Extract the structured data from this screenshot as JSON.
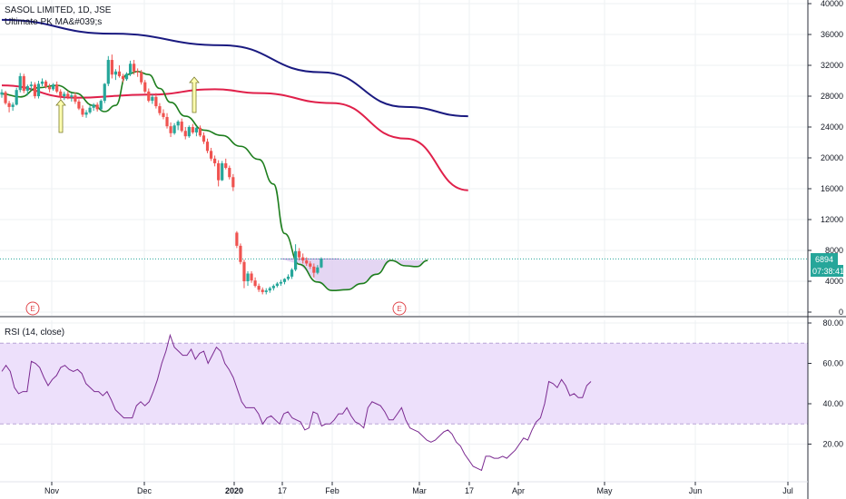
{
  "header": {
    "symbol_line": "SASOL LIMITED, 1D, JSE",
    "indicator_line": "Ultimate PK MA&#039;s"
  },
  "rsi_pane": {
    "label": "RSI (14, close)"
  },
  "price_badge": {
    "price": "6894",
    "countdown": "07:38:41"
  },
  "events": [
    "E",
    "E"
  ],
  "colors": {
    "up": "#26a69a",
    "down": "#ef5350",
    "ma_long": "#1a1a80",
    "ma_mid": "#e0204a",
    "ma_short": "#1e7e1e",
    "rsi_line": "#7b2a91",
    "rsi_band": "#ede0fb",
    "cup_fill": "#d9c4ee",
    "price_line": "#26a69a",
    "arrow_fill": "#ffffb0"
  },
  "chart_data": [
    {
      "type": "candlestick",
      "title": "SASOL LIMITED, 1D, JSE",
      "y_ticks": [
        0,
        4000,
        8000,
        12000,
        16000,
        20000,
        24000,
        28000,
        32000,
        36000,
        40000
      ],
      "ylim": [
        0,
        40000
      ],
      "x_ticks": [
        "Nov",
        "Dec",
        "2020",
        "17",
        "Feb",
        "Mar",
        "17",
        "Apr",
        "May",
        "Jun",
        "Jul"
      ],
      "last_price": 6894,
      "series": [
        {
          "name": "Ultimate PK MA&#039;s",
          "kind": "moving_averages"
        }
      ],
      "ohlc": [
        [
          28200,
          28900,
          27800,
          28500
        ],
        [
          28500,
          28700,
          26900,
          27100
        ],
        [
          27100,
          27400,
          25900,
          26600
        ],
        [
          26600,
          27200,
          26100,
          26900
        ],
        [
          26900,
          29100,
          26800,
          28800
        ],
        [
          28800,
          31000,
          28500,
          30600
        ],
        [
          30600,
          30900,
          28400,
          28700
        ],
        [
          28700,
          29500,
          28100,
          29300
        ],
        [
          29300,
          29900,
          28800,
          29500
        ],
        [
          29500,
          29800,
          27700,
          28000
        ],
        [
          28000,
          30000,
          27700,
          29600
        ],
        [
          29600,
          30300,
          29300,
          29900
        ],
        [
          29900,
          30100,
          29000,
          29200
        ],
        [
          29200,
          29600,
          28500,
          28900
        ],
        [
          28900,
          29700,
          28700,
          29500
        ],
        [
          29500,
          29900,
          28400,
          28600
        ],
        [
          28600,
          28900,
          27600,
          28000
        ],
        [
          28000,
          28600,
          27500,
          28300
        ],
        [
          28300,
          28700,
          27600,
          27900
        ],
        [
          27900,
          28400,
          27300,
          28100
        ],
        [
          28100,
          28500,
          27000,
          27300
        ],
        [
          27300,
          27600,
          26200,
          26400
        ],
        [
          26400,
          26800,
          25300,
          25600
        ],
        [
          25600,
          26200,
          25200,
          25900
        ],
        [
          25900,
          26800,
          25700,
          26500
        ],
        [
          26500,
          27100,
          26100,
          26900
        ],
        [
          26900,
          27200,
          26000,
          26300
        ],
        [
          26300,
          27600,
          26100,
          27400
        ],
        [
          27400,
          29700,
          27100,
          29600
        ],
        [
          29600,
          33200,
          29300,
          32700
        ],
        [
          32700,
          33400,
          30300,
          30800
        ],
        [
          30800,
          31500,
          30100,
          31200
        ],
        [
          31200,
          32000,
          30400,
          30600
        ],
        [
          30600,
          30900,
          29800,
          30200
        ],
        [
          30200,
          31100,
          30000,
          30900
        ],
        [
          30900,
          32600,
          30600,
          32200
        ],
        [
          32200,
          32700,
          30800,
          31200
        ],
        [
          31200,
          31600,
          30500,
          31100
        ],
        [
          31100,
          31400,
          29500,
          29800
        ],
        [
          29800,
          30100,
          28400,
          28600
        ],
        [
          28600,
          29000,
          27200,
          27400
        ],
        [
          27400,
          28200,
          27000,
          27900
        ],
        [
          27900,
          28400,
          26400,
          26700
        ],
        [
          26700,
          27100,
          25500,
          25800
        ],
        [
          25800,
          26300,
          25000,
          25300
        ],
        [
          25300,
          25800,
          23800,
          24100
        ],
        [
          24100,
          24600,
          22700,
          23200
        ],
        [
          23200,
          24500,
          23000,
          24200
        ],
        [
          24200,
          24900,
          23600,
          24700
        ],
        [
          24700,
          25100,
          23300,
          23500
        ],
        [
          23500,
          24000,
          22400,
          22800
        ],
        [
          22800,
          24200,
          22600,
          24000
        ],
        [
          24000,
          24400,
          23100,
          23300
        ],
        [
          23300,
          24100,
          22800,
          23900
        ],
        [
          23900,
          24200,
          22700,
          22900
        ],
        [
          22900,
          23300,
          21800,
          22100
        ],
        [
          22100,
          22500,
          20600,
          20900
        ],
        [
          20900,
          21300,
          19600,
          19900
        ],
        [
          19900,
          20300,
          18900,
          19300
        ],
        [
          19300,
          19700,
          16300,
          17100
        ],
        [
          17100,
          19600,
          17000,
          19300
        ],
        [
          19300,
          19900,
          18500,
          18700
        ],
        [
          18700,
          19000,
          17200,
          17500
        ],
        [
          17500,
          17900,
          15700,
          16200
        ],
        [
          10300,
          10500,
          8300,
          8600
        ],
        [
          8600,
          8900,
          6200,
          6500
        ],
        [
          6500,
          6800,
          3100,
          4000
        ],
        [
          4000,
          5300,
          3400,
          5000
        ],
        [
          5000,
          5300,
          3800,
          4100
        ],
        [
          4100,
          4500,
          3200,
          3400
        ],
        [
          3400,
          3700,
          2600,
          2900
        ],
        [
          2900,
          3200,
          2300,
          2600
        ],
        [
          2600,
          3100,
          2300,
          2800
        ],
        [
          2800,
          3300,
          2500,
          3100
        ],
        [
          3100,
          3600,
          2800,
          3400
        ],
        [
          3400,
          3900,
          3200,
          3700
        ],
        [
          3700,
          4200,
          3400,
          3900
        ],
        [
          3900,
          4400,
          3600,
          4300
        ],
        [
          4300,
          4900,
          4100,
          4600
        ],
        [
          4600,
          5700,
          4300,
          5500
        ],
        [
          5500,
          8800,
          5300,
          7900
        ],
        [
          7900,
          8300,
          6700,
          7100
        ],
        [
          7100,
          7600,
          6300,
          6700
        ],
        [
          6700,
          7100,
          6000,
          6300
        ],
        [
          6300,
          6600,
          5600,
          5900
        ],
        [
          5900,
          6300,
          4500,
          5100
        ],
        [
          5100,
          6100,
          4900,
          5800
        ],
        [
          5800,
          7100,
          5700,
          6900
        ]
      ],
      "ma_long": [
        [
          0,
          37900
        ],
        [
          30,
          36100
        ],
        [
          60,
          34600
        ],
        [
          87,
          31100
        ],
        [
          110,
          26600
        ],
        [
          127,
          25400
        ]
      ],
      "ma_mid": [
        [
          0,
          29400
        ],
        [
          20,
          27800
        ],
        [
          40,
          28200
        ],
        [
          58,
          28900
        ],
        [
          70,
          28400
        ],
        [
          90,
          27100
        ],
        [
          110,
          22500
        ],
        [
          127,
          15800
        ]
      ],
      "ma_short": [
        [
          0,
          28300
        ],
        [
          5,
          27900
        ],
        [
          10,
          29100
        ],
        [
          15,
          29400
        ],
        [
          20,
          28400
        ],
        [
          25,
          26800
        ],
        [
          28,
          26000
        ],
        [
          31,
          26800
        ],
        [
          34,
          30800
        ],
        [
          37,
          31200
        ],
        [
          40,
          30800
        ],
        [
          43,
          29000
        ],
        [
          46,
          27200
        ],
        [
          50,
          25400
        ],
        [
          55,
          23600
        ],
        [
          60,
          22900
        ],
        [
          65,
          21500
        ],
        [
          70,
          19800
        ],
        [
          74,
          16600
        ],
        [
          77,
          10200
        ],
        [
          81,
          6200
        ],
        [
          86,
          3900
        ],
        [
          90,
          2800
        ],
        [
          94,
          2900
        ],
        [
          98,
          3700
        ],
        [
          102,
          4900
        ],
        [
          106,
          6700
        ],
        [
          110,
          6000
        ],
        [
          113,
          5900
        ],
        [
          116,
          6700
        ]
      ]
    },
    {
      "type": "line",
      "title": "RSI (14, close)",
      "y_ticks": [
        20,
        40,
        60,
        80
      ],
      "ylim": [
        0,
        80
      ],
      "band": [
        30,
        70
      ],
      "values": [
        56,
        59,
        56,
        48,
        45,
        46,
        46,
        61,
        60,
        58,
        53,
        49,
        52,
        54,
        58,
        59,
        57,
        56,
        57,
        55,
        50,
        48,
        46,
        46,
        44,
        46,
        42,
        37,
        35,
        33,
        33,
        33,
        39,
        41,
        39,
        41,
        46,
        52,
        60,
        66,
        74,
        68,
        66,
        64,
        64,
        67,
        62,
        65,
        66,
        60,
        64,
        68,
        66,
        60,
        57,
        53,
        47,
        41,
        38,
        38,
        38,
        35,
        30,
        33,
        34,
        32,
        30,
        35,
        36,
        33,
        32,
        31,
        27,
        28,
        36,
        35,
        29,
        30,
        30,
        32,
        35,
        35,
        38,
        34,
        31,
        30,
        28,
        38,
        41,
        40,
        39,
        36,
        32,
        32,
        35,
        38,
        32,
        28,
        27,
        26,
        24,
        22,
        21,
        22,
        24,
        26,
        27,
        25,
        21,
        19,
        15,
        12,
        9,
        8,
        7,
        14,
        14,
        13,
        13,
        14,
        13,
        15,
        17,
        20,
        23,
        22,
        27,
        31,
        33,
        40,
        51,
        50,
        48,
        52,
        49,
        44,
        45,
        43,
        43,
        49,
        51
      ]
    }
  ]
}
